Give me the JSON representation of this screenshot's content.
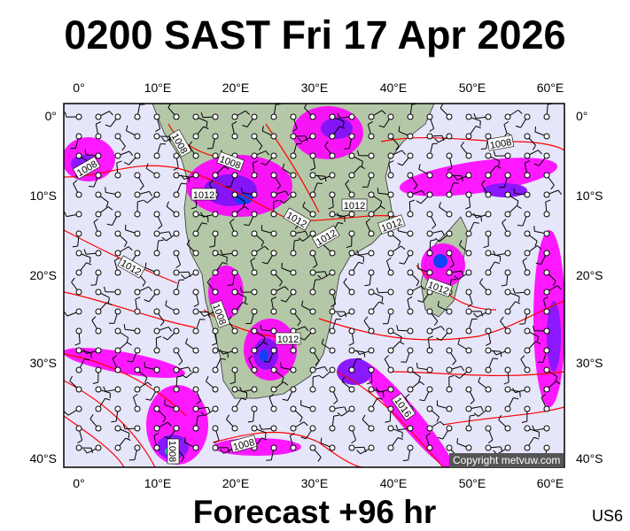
{
  "title": "0200 SAST Fri 17 Apr 2026",
  "caption": "Forecast +96 hr",
  "region_code": "US6",
  "copyright": "Copyright metvuw.com",
  "x_ticks": [
    "0°",
    "10°E",
    "20°E",
    "30°E",
    "40°E",
    "50°E",
    "60°E"
  ],
  "y_ticks": [
    "0°",
    "10°S",
    "20°S",
    "30°S",
    "40°S"
  ],
  "isobar_labels": [
    "1008",
    "1008",
    "1008",
    "1008",
    "1008",
    "1012",
    "1012",
    "1012",
    "1012",
    "1012",
    "1012",
    "1012",
    "1012",
    "1016",
    "1008",
    "1008"
  ],
  "colors": {
    "ocean": "#e6e6fa",
    "land": "#b4c8a8",
    "isobar": "#ff0000",
    "rain_light": "#ff00ff",
    "rain_mid": "#8000ff",
    "rain_heavy": "#0033ff"
  }
}
